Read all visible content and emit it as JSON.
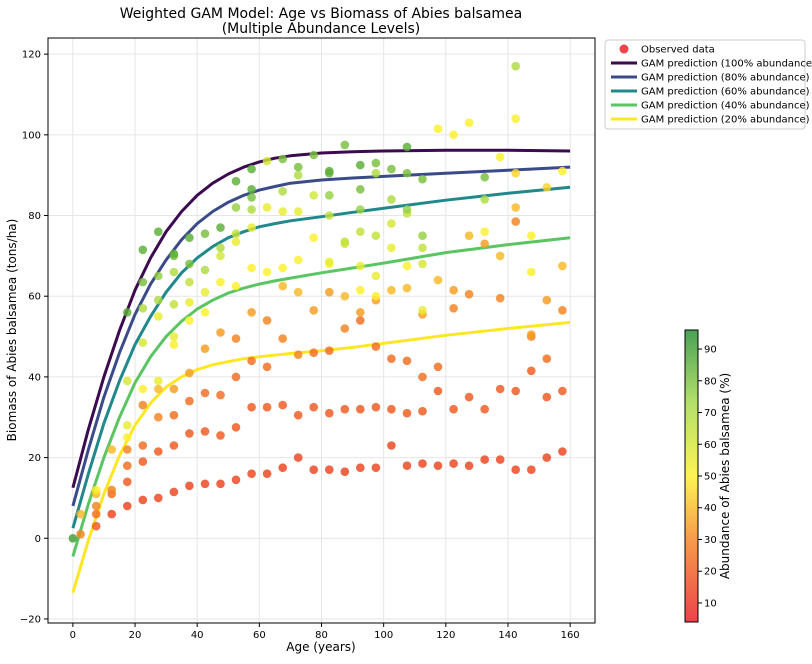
{
  "chart_data": {
    "type": "scatter",
    "title": "Weighted GAM Model: Age vs Biomass of Abies balsamea",
    "subtitle": "(Multiple Abundance Levels)",
    "xlabel": "Age (years)",
    "ylabel": "Biomass of Abies balsamea (tons/ha)",
    "xlim": [
      -8,
      168
    ],
    "ylim": [
      -21,
      124
    ],
    "xticks": [
      0,
      20,
      40,
      60,
      80,
      100,
      120,
      140,
      160
    ],
    "yticks": [
      -20,
      0,
      20,
      40,
      60,
      80,
      100,
      120
    ],
    "grid": true,
    "legend_position": "top-right outside",
    "colorbar": {
      "label": "Abundance of Abies balsamea (%)",
      "ticks": [
        10,
        20,
        30,
        40,
        50,
        60,
        70,
        80,
        90
      ],
      "range": [
        4,
        96
      ],
      "colormap": [
        "#e8141c",
        "#f5891e",
        "#fcf02a",
        "#a1d844",
        "#1c8a2c"
      ]
    },
    "legend": [
      {
        "label": "Observed data",
        "kind": "marker",
        "color": "#e8141c"
      },
      {
        "label": "GAM prediction (100% abundance)",
        "kind": "line",
        "color": "#3b0a4f"
      },
      {
        "label": "GAM prediction (80% abundance)",
        "kind": "line",
        "color": "#3b4b8a"
      },
      {
        "label": "GAM prediction (60% abundance)",
        "kind": "line",
        "color": "#21888b"
      },
      {
        "label": "GAM prediction (40% abundance)",
        "kind": "line",
        "color": "#5cc563"
      },
      {
        "label": "GAM prediction (20% abundance)",
        "kind": "line",
        "color": "#fde725"
      }
    ],
    "series": [
      {
        "name": "GAM prediction (100% abundance)",
        "color": "#3b0a4f",
        "x": [
          0,
          5,
          10,
          15,
          20,
          25,
          30,
          35,
          40,
          45,
          50,
          55,
          60,
          65,
          70,
          80,
          90,
          100,
          120,
          140,
          160
        ],
        "y": [
          12.5,
          27,
          40,
          51.5,
          61.5,
          69.5,
          76,
          81,
          85,
          88,
          90.3,
          92,
          93.3,
          94.2,
          94.8,
          95.5,
          95.8,
          96,
          96.2,
          96.2,
          96
        ]
      },
      {
        "name": "GAM prediction (80% abundance)",
        "color": "#3b4b8a",
        "x": [
          0,
          5,
          10,
          15,
          20,
          25,
          30,
          35,
          40,
          45,
          50,
          55,
          60,
          65,
          70,
          80,
          90,
          100,
          120,
          140,
          160
        ],
        "y": [
          8,
          22,
          35,
          46,
          55.5,
          63,
          69,
          74,
          78,
          81,
          83.3,
          85,
          86.3,
          87.2,
          88,
          88.8,
          89.3,
          89.7,
          90.5,
          91.2,
          92
        ]
      },
      {
        "name": "GAM prediction (60% abundance)",
        "color": "#21888b",
        "x": [
          0,
          5,
          10,
          15,
          20,
          25,
          30,
          35,
          40,
          45,
          50,
          55,
          60,
          65,
          70,
          80,
          90,
          100,
          120,
          140,
          160
        ],
        "y": [
          2.5,
          16,
          28.5,
          39,
          48,
          55,
          61,
          65.8,
          69.5,
          72.3,
          74.5,
          76,
          77.2,
          78,
          78.7,
          79.7,
          80.8,
          81.8,
          83.8,
          85.5,
          87
        ]
      },
      {
        "name": "GAM prediction (40% abundance)",
        "color": "#5cc563",
        "x": [
          0,
          5,
          10,
          15,
          20,
          25,
          30,
          35,
          40,
          45,
          50,
          55,
          60,
          65,
          70,
          80,
          90,
          100,
          120,
          140,
          160
        ],
        "y": [
          -4.5,
          8.5,
          20,
          30,
          38.5,
          45,
          50,
          53.8,
          56.8,
          59,
          60.8,
          62,
          63,
          63.8,
          64.5,
          65.8,
          67,
          68.2,
          70.8,
          72.8,
          74.5
        ]
      },
      {
        "name": "GAM prediction (20% abundance)",
        "color": "#fde725",
        "x": [
          0,
          5,
          10,
          15,
          20,
          25,
          30,
          35,
          40,
          45,
          50,
          55,
          60,
          65,
          70,
          80,
          90,
          100,
          120,
          140,
          160
        ],
        "y": [
          -13.5,
          -0.5,
          11,
          20.5,
          28,
          33.5,
          37.5,
          40,
          41.8,
          43,
          43.8,
          44.5,
          45,
          45.4,
          45.8,
          46.5,
          47.3,
          48.3,
          50.3,
          52,
          53.5
        ]
      }
    ],
    "observed": [
      [
        0,
        0,
        90
      ],
      [
        2.5,
        1,
        30
      ],
      [
        2.5,
        6,
        40
      ],
      [
        7.5,
        3,
        20
      ],
      [
        7.5,
        6,
        25
      ],
      [
        7.5,
        8,
        30
      ],
      [
        7.5,
        11,
        40
      ],
      [
        7.5,
        12,
        50
      ],
      [
        12.5,
        6,
        15
      ],
      [
        12.5,
        11,
        25
      ],
      [
        12.5,
        12,
        30
      ],
      [
        12.5,
        22,
        40
      ],
      [
        17.5,
        8,
        15
      ],
      [
        17.5,
        14,
        20
      ],
      [
        17.5,
        18,
        25
      ],
      [
        17.5,
        22,
        30
      ],
      [
        17.5,
        25,
        50
      ],
      [
        17.5,
        28,
        55
      ],
      [
        17.5,
        39,
        60
      ],
      [
        17.5,
        56,
        85
      ],
      [
        22.5,
        9.5,
        15
      ],
      [
        22.5,
        19,
        20
      ],
      [
        22.5,
        23,
        25
      ],
      [
        22.5,
        33,
        30
      ],
      [
        22.5,
        37,
        50
      ],
      [
        22.5,
        48.5,
        60
      ],
      [
        22.5,
        57,
        70
      ],
      [
        22.5,
        63.5,
        80
      ],
      [
        22.5,
        71.5,
        85
      ],
      [
        27.5,
        10,
        15
      ],
      [
        27.5,
        21.5,
        20
      ],
      [
        27.5,
        30,
        30
      ],
      [
        27.5,
        37,
        40
      ],
      [
        27.5,
        39,
        55
      ],
      [
        27.5,
        55,
        55
      ],
      [
        27.5,
        59,
        70
      ],
      [
        27.5,
        65,
        75
      ],
      [
        27.5,
        76,
        85
      ],
      [
        32.5,
        11.5,
        15
      ],
      [
        32.5,
        23,
        20
      ],
      [
        32.5,
        30.5,
        25
      ],
      [
        32.5,
        37,
        35
      ],
      [
        32.5,
        48,
        50
      ],
      [
        32.5,
        50,
        55
      ],
      [
        32.5,
        58,
        65
      ],
      [
        32.5,
        66,
        70
      ],
      [
        32.5,
        70,
        80
      ],
      [
        32.5,
        70.5,
        85
      ],
      [
        37.5,
        13,
        15
      ],
      [
        37.5,
        26,
        20
      ],
      [
        37.5,
        34,
        25
      ],
      [
        37.5,
        41,
        35
      ],
      [
        37.5,
        54,
        50
      ],
      [
        37.5,
        58.5,
        55
      ],
      [
        37.5,
        63.5,
        65
      ],
      [
        37.5,
        68,
        80
      ],
      [
        37.5,
        74.5,
        85
      ],
      [
        42.5,
        13.5,
        15
      ],
      [
        42.5,
        26.5,
        20
      ],
      [
        42.5,
        36,
        25
      ],
      [
        42.5,
        47,
        35
      ],
      [
        42.5,
        56,
        50
      ],
      [
        42.5,
        61,
        55
      ],
      [
        42.5,
        66.5,
        70
      ],
      [
        42.5,
        75.5,
        80
      ],
      [
        47.5,
        13.5,
        15
      ],
      [
        47.5,
        25.5,
        20
      ],
      [
        47.5,
        35.5,
        25
      ],
      [
        47.5,
        51,
        35
      ],
      [
        47.5,
        63.5,
        50
      ],
      [
        47.5,
        70,
        60
      ],
      [
        47.5,
        72,
        70
      ],
      [
        47.5,
        77,
        85
      ],
      [
        52.5,
        14.5,
        15
      ],
      [
        52.5,
        27.5,
        20
      ],
      [
        52.5,
        40,
        25
      ],
      [
        52.5,
        49.5,
        30
      ],
      [
        52.5,
        62.5,
        50
      ],
      [
        52.5,
        73.5,
        55
      ],
      [
        52.5,
        75.5,
        65
      ],
      [
        52.5,
        82,
        75
      ],
      [
        52.5,
        88.5,
        85
      ],
      [
        57.5,
        16,
        15
      ],
      [
        57.5,
        32.5,
        20
      ],
      [
        57.5,
        44,
        25
      ],
      [
        57.5,
        56,
        35
      ],
      [
        57.5,
        67,
        50
      ],
      [
        57.5,
        77,
        55
      ],
      [
        57.5,
        81.5,
        70
      ],
      [
        57.5,
        84.5,
        80
      ],
      [
        57.5,
        86.5,
        85
      ],
      [
        57.5,
        91.5,
        85
      ],
      [
        62.5,
        16,
        15
      ],
      [
        62.5,
        32.5,
        20
      ],
      [
        62.5,
        42.5,
        25
      ],
      [
        62.5,
        54,
        30
      ],
      [
        62.5,
        66,
        50
      ],
      [
        62.5,
        82,
        55
      ],
      [
        62.5,
        93.5,
        60
      ],
      [
        67.5,
        17.5,
        15
      ],
      [
        67.5,
        33,
        20
      ],
      [
        67.5,
        49.5,
        30
      ],
      [
        67.5,
        62.5,
        40
      ],
      [
        67.5,
        67,
        50
      ],
      [
        67.5,
        81,
        55
      ],
      [
        67.5,
        86,
        70
      ],
      [
        67.5,
        94,
        80
      ],
      [
        72.5,
        20,
        15
      ],
      [
        72.5,
        30.5,
        20
      ],
      [
        72.5,
        45.5,
        30
      ],
      [
        72.5,
        61,
        40
      ],
      [
        72.5,
        69,
        50
      ],
      [
        72.5,
        81,
        55
      ],
      [
        72.5,
        90,
        70
      ],
      [
        72.5,
        92,
        80
      ],
      [
        77.5,
        17,
        15
      ],
      [
        77.5,
        32.5,
        20
      ],
      [
        77.5,
        46,
        25
      ],
      [
        77.5,
        56.5,
        35
      ],
      [
        77.5,
        74.5,
        50
      ],
      [
        77.5,
        85,
        60
      ],
      [
        77.5,
        95,
        80
      ],
      [
        82.5,
        17,
        15
      ],
      [
        82.5,
        31,
        20
      ],
      [
        82.5,
        46.5,
        25
      ],
      [
        82.5,
        61,
        35
      ],
      [
        82.5,
        68,
        50
      ],
      [
        82.5,
        68.5,
        55
      ],
      [
        82.5,
        80,
        65
      ],
      [
        82.5,
        85,
        75
      ],
      [
        82.5,
        90.5,
        85
      ],
      [
        82.5,
        91,
        85
      ],
      [
        87.5,
        16.5,
        15
      ],
      [
        87.5,
        32,
        20
      ],
      [
        87.5,
        52,
        30
      ],
      [
        87.5,
        60,
        40
      ],
      [
        87.5,
        73,
        60
      ],
      [
        87.5,
        73.5,
        65
      ],
      [
        87.5,
        97.5,
        80
      ],
      [
        92.5,
        17.5,
        15
      ],
      [
        92.5,
        32,
        20
      ],
      [
        92.5,
        54,
        25
      ],
      [
        92.5,
        56,
        35
      ],
      [
        92.5,
        61.5,
        50
      ],
      [
        92.5,
        67.5,
        55
      ],
      [
        92.5,
        76,
        65
      ],
      [
        92.5,
        81.5,
        75
      ],
      [
        92.5,
        86.5,
        80
      ],
      [
        92.5,
        92.5,
        85
      ],
      [
        97.5,
        17.5,
        15
      ],
      [
        97.5,
        32.5,
        20
      ],
      [
        97.5,
        47.5,
        25
      ],
      [
        97.5,
        59,
        35
      ],
      [
        97.5,
        60,
        50
      ],
      [
        97.5,
        65,
        55
      ],
      [
        97.5,
        75,
        65
      ],
      [
        97.5,
        90.5,
        70
      ],
      [
        97.5,
        93,
        80
      ],
      [
        102.5,
        23,
        15
      ],
      [
        102.5,
        32,
        20
      ],
      [
        102.5,
        44.5,
        25
      ],
      [
        102.5,
        61.5,
        40
      ],
      [
        102.5,
        72,
        55
      ],
      [
        102.5,
        78,
        60
      ],
      [
        102.5,
        84,
        70
      ],
      [
        102.5,
        91.5,
        80
      ],
      [
        107.5,
        18,
        15
      ],
      [
        107.5,
        31,
        20
      ],
      [
        107.5,
        44,
        25
      ],
      [
        107.5,
        62,
        40
      ],
      [
        107.5,
        67.5,
        50
      ],
      [
        107.5,
        80.5,
        65
      ],
      [
        107.5,
        81.5,
        75
      ],
      [
        107.5,
        90.5,
        80
      ],
      [
        107.5,
        97,
        85
      ],
      [
        112.5,
        18.5,
        15
      ],
      [
        112.5,
        31.5,
        20
      ],
      [
        112.5,
        40,
        25
      ],
      [
        112.5,
        55.5,
        35
      ],
      [
        112.5,
        56.5,
        55
      ],
      [
        112.5,
        68,
        60
      ],
      [
        112.5,
        72,
        65
      ],
      [
        112.5,
        75,
        75
      ],
      [
        112.5,
        89,
        80
      ],
      [
        117.5,
        18,
        15
      ],
      [
        117.5,
        36.5,
        20
      ],
      [
        117.5,
        42.5,
        25
      ],
      [
        117.5,
        64,
        40
      ],
      [
        117.5,
        101.5,
        50
      ],
      [
        122.5,
        18.5,
        15
      ],
      [
        122.5,
        32,
        20
      ],
      [
        122.5,
        57,
        30
      ],
      [
        122.5,
        61.5,
        35
      ],
      [
        122.5,
        100,
        50
      ],
      [
        127.5,
        18,
        15
      ],
      [
        127.5,
        35,
        20
      ],
      [
        127.5,
        60.5,
        30
      ],
      [
        127.5,
        75,
        40
      ],
      [
        127.5,
        103,
        50
      ],
      [
        132.5,
        19.5,
        15
      ],
      [
        132.5,
        32,
        20
      ],
      [
        132.5,
        73,
        35
      ],
      [
        132.5,
        76,
        50
      ],
      [
        132.5,
        84,
        70
      ],
      [
        132.5,
        89.5,
        80
      ],
      [
        137.5,
        19.5,
        15
      ],
      [
        137.5,
        37,
        20
      ],
      [
        137.5,
        59.5,
        30
      ],
      [
        137.5,
        70,
        40
      ],
      [
        137.5,
        94.5,
        50
      ],
      [
        142.5,
        17,
        15
      ],
      [
        142.5,
        36.5,
        20
      ],
      [
        142.5,
        78.5,
        30
      ],
      [
        142.5,
        82,
        40
      ],
      [
        142.5,
        90.5,
        45
      ],
      [
        142.5,
        104,
        50
      ],
      [
        142.5,
        117,
        70
      ],
      [
        147.5,
        17,
        15
      ],
      [
        147.5,
        41.5,
        20
      ],
      [
        147.5,
        50,
        30
      ],
      [
        147.5,
        50.5,
        35
      ],
      [
        147.5,
        66,
        50
      ],
      [
        147.5,
        75,
        50
      ],
      [
        152.5,
        20,
        15
      ],
      [
        152.5,
        35,
        20
      ],
      [
        152.5,
        44.5,
        25
      ],
      [
        152.5,
        59,
        35
      ],
      [
        152.5,
        87,
        45
      ],
      [
        157.5,
        21.5,
        15
      ],
      [
        157.5,
        36.5,
        20
      ],
      [
        157.5,
        56.5,
        30
      ],
      [
        157.5,
        67.5,
        40
      ],
      [
        157.5,
        91,
        50
      ]
    ]
  }
}
